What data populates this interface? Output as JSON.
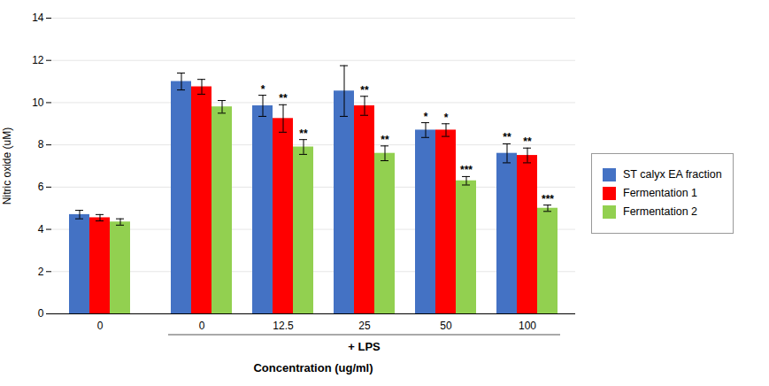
{
  "chart_data": {
    "type": "bar",
    "categories": [
      "0",
      "0",
      "12.5",
      "25",
      "50",
      "100"
    ],
    "series": [
      {
        "name": "ST calyx EA fraction",
        "color": "#4472C4",
        "values": [
          4.7,
          11.0,
          9.85,
          10.55,
          8.7,
          7.6
        ],
        "errors": [
          0.2,
          0.4,
          0.5,
          1.2,
          0.35,
          0.45
        ],
        "significance": [
          null,
          null,
          "*",
          null,
          "*",
          "**"
        ]
      },
      {
        "name": "Fermentation 1",
        "color": "#FF0000",
        "values": [
          4.55,
          10.75,
          9.25,
          9.85,
          8.7,
          7.5
        ],
        "errors": [
          0.15,
          0.35,
          0.65,
          0.45,
          0.3,
          0.35
        ],
        "significance": [
          null,
          null,
          "**",
          "**",
          "*",
          "**"
        ]
      },
      {
        "name": "Fermentation 2",
        "color": "#92D050",
        "values": [
          4.35,
          9.8,
          7.9,
          7.6,
          6.3,
          5.0
        ],
        "errors": [
          0.15,
          0.3,
          0.35,
          0.35,
          0.2,
          0.15
        ],
        "significance": [
          null,
          null,
          "**",
          "**",
          "***",
          "***"
        ]
      }
    ],
    "ylabel": "Nitric oxide (uM)",
    "xlabel": "Concentration (ug/ml)",
    "annotations": [
      {
        "text": "+ LPS",
        "from": 1,
        "to": 5
      }
    ],
    "ylim": [
      0,
      14
    ],
    "yticks": [
      0,
      2,
      4,
      6,
      8,
      10,
      12,
      14
    ],
    "grid": true,
    "legend": "right"
  }
}
